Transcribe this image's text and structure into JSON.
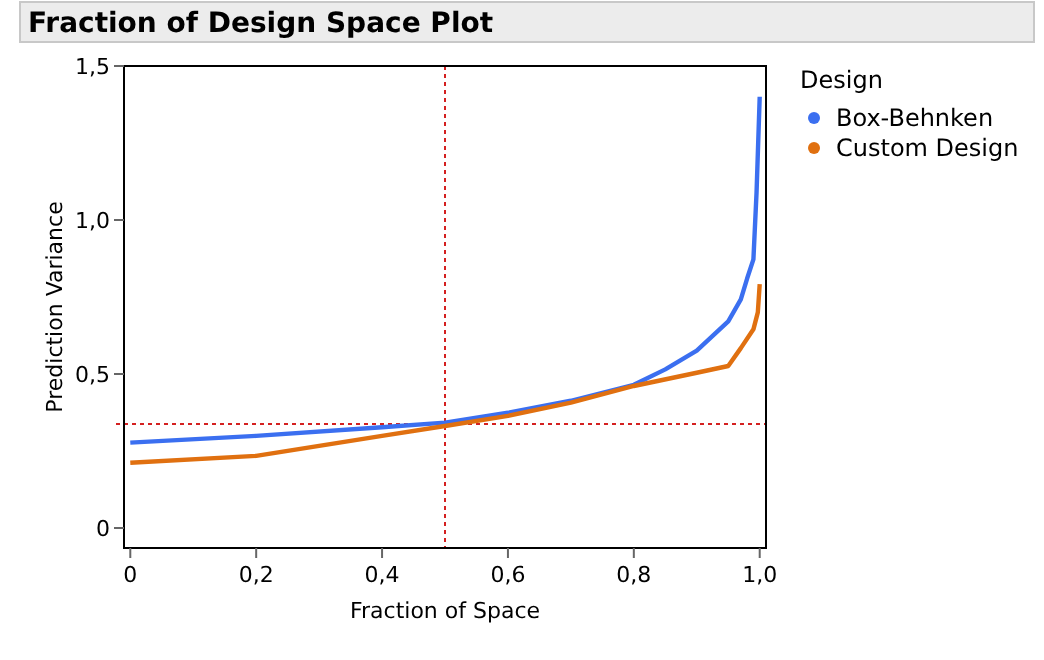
{
  "chart_data": {
    "type": "line",
    "title": "Fraction of Design Space Plot",
    "xlabel": "Fraction of Space",
    "ylabel": "Prediction Variance",
    "legend_title": "Design",
    "legend": "right",
    "xlim": [
      -0.01,
      1.01
    ],
    "ylim": [
      -0.065,
      1.5
    ],
    "xticks": [
      {
        "value": 0,
        "label": "0"
      },
      {
        "value": 0.2,
        "label": "0,2"
      },
      {
        "value": 0.4,
        "label": "0,4"
      },
      {
        "value": 0.6,
        "label": "0,6"
      },
      {
        "value": 0.8,
        "label": "0,8"
      },
      {
        "value": 1,
        "label": "1,0"
      }
    ],
    "yticks": [
      {
        "value": 0,
        "label": "0"
      },
      {
        "value": 0.5,
        "label": "0,5"
      },
      {
        "value": 1,
        "label": "1,0"
      },
      {
        "value": 1.5,
        "label": "1,5"
      }
    ],
    "ref_lines": [
      {
        "axis": "x",
        "value": 0.5,
        "label": null,
        "color": "#d42020",
        "line_style": "dotted"
      },
      {
        "axis": "y",
        "value": 0.338,
        "label": null,
        "color": "#d42020",
        "line_style": "dotted"
      }
    ],
    "series": [
      {
        "name": "Box-Behnken",
        "color": "#3b6ff0",
        "x": [
          0,
          0.2,
          0.4,
          0.5,
          0.6,
          0.7,
          0.8,
          0.85,
          0.9,
          0.95,
          0.97,
          0.98,
          0.99,
          0.995,
          1.0
        ],
        "values": [
          0.277,
          0.299,
          0.327,
          0.342,
          0.374,
          0.413,
          0.465,
          0.515,
          0.576,
          0.671,
          0.742,
          0.81,
          0.872,
          1.09,
          1.4
        ]
      },
      {
        "name": "Custom Design",
        "color": "#e07010",
        "x": [
          0,
          0.2,
          0.4,
          0.5,
          0.6,
          0.7,
          0.8,
          0.9,
          0.95,
          0.97,
          0.99,
          0.997,
          1.0
        ],
        "values": [
          0.212,
          0.234,
          0.299,
          0.331,
          0.364,
          0.407,
          0.461,
          0.504,
          0.526,
          0.584,
          0.645,
          0.7,
          0.792
        ]
      }
    ]
  }
}
